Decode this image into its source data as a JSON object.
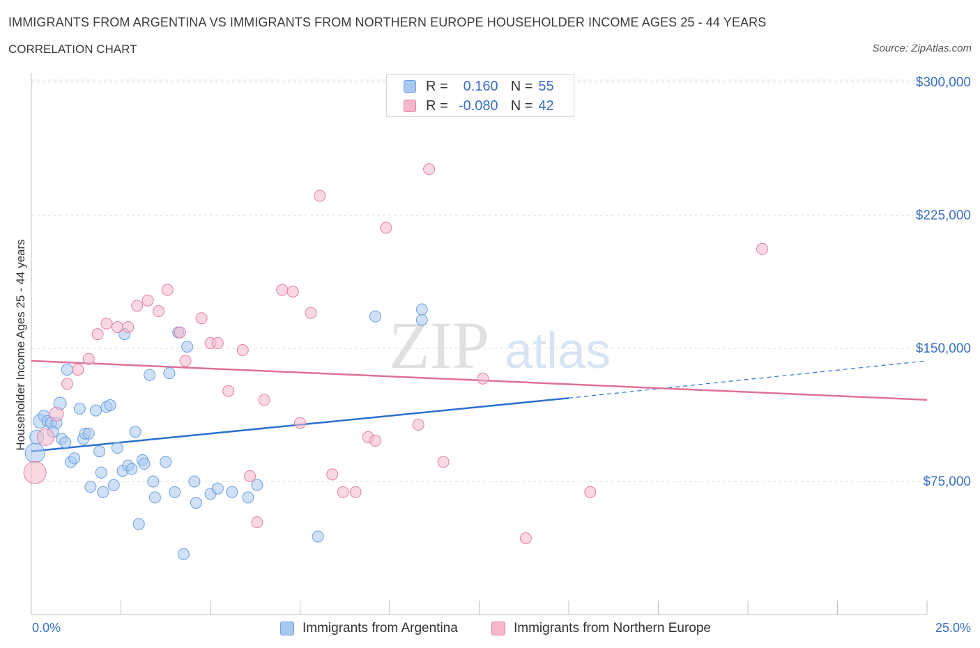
{
  "header": {
    "title": "IMMIGRANTS FROM ARGENTINA VS IMMIGRANTS FROM NORTHERN EUROPE HOUSEHOLDER INCOME AGES 25 - 44 YEARS",
    "subtitle": "CORRELATION CHART",
    "source": "Source: ZipAtlas.com"
  },
  "watermark": {
    "zip": "ZIP",
    "atlas": "atlas"
  },
  "stats_legend": {
    "rows": [
      {
        "r_label": "R =",
        "r_value": "0.160",
        "n_label": "N =",
        "n_value": "55",
        "color": "#a9c8f0"
      },
      {
        "r_label": "R =",
        "r_value": "-0.080",
        "n_label": "N =",
        "n_value": "42",
        "color": "#f5b8cb"
      }
    ]
  },
  "colors": {
    "blue_fill": "#a9c8f0",
    "blue_stroke": "#6a9fdf",
    "blue_line": "#2c6fcf",
    "pink_fill": "#f5b8cb",
    "pink_stroke": "#e27fa0",
    "pink_line": "#e0709a",
    "axis_text": "#3a6fc4",
    "grid": "#dcdcdc"
  },
  "chart_data": {
    "type": "scatter",
    "title": "IMMIGRANTS FROM ARGENTINA VS IMMIGRANTS FROM NORTHERN EUROPE HOUSEHOLDER INCOME AGES 25 - 44 YEARS",
    "xlabel": "",
    "ylabel": "Householder Income Ages 25 - 44 years",
    "x_unit": "%",
    "xlim": [
      0,
      25
    ],
    "ylim": [
      0,
      300000
    ],
    "y_ticks": [
      75000,
      150000,
      225000,
      300000
    ],
    "y_tick_labels": [
      "$75,000",
      "$150,000",
      "$225,000",
      "$300,000"
    ],
    "x_tick_labels": [
      "0.0%",
      "25.0%"
    ],
    "grid": true,
    "legend_position": "bottom",
    "series": [
      {
        "name": "Immigrants from Argentina",
        "color": "#a9c8f0",
        "trend": {
          "x": [
            0.0,
            15.0
          ],
          "y": [
            92000,
            122000
          ],
          "dashed_extension_to_x": 25.0,
          "dashed_y_at_end": 143000
        },
        "points": [
          {
            "x": 0.1,
            "y": 91000,
            "size": 14
          },
          {
            "x": 0.15,
            "y": 100000,
            "size": 10
          },
          {
            "x": 0.25,
            "y": 109000,
            "size": 10
          },
          {
            "x": 0.35,
            "y": 112000,
            "size": 8
          },
          {
            "x": 0.45,
            "y": 109000,
            "size": 8
          },
          {
            "x": 0.55,
            "y": 108000,
            "size": 8
          },
          {
            "x": 0.7,
            "y": 108000,
            "size": 8
          },
          {
            "x": 0.6,
            "y": 103000,
            "size": 8
          },
          {
            "x": 0.8,
            "y": 119000,
            "size": 9
          },
          {
            "x": 0.85,
            "y": 99000,
            "size": 8
          },
          {
            "x": 0.95,
            "y": 97000,
            "size": 8
          },
          {
            "x": 1.0,
            "y": 138000,
            "size": 8
          },
          {
            "x": 1.1,
            "y": 86000,
            "size": 8
          },
          {
            "x": 1.2,
            "y": 88000,
            "size": 8
          },
          {
            "x": 1.35,
            "y": 116000,
            "size": 8
          },
          {
            "x": 1.45,
            "y": 99000,
            "size": 8
          },
          {
            "x": 1.5,
            "y": 102000,
            "size": 8
          },
          {
            "x": 1.6,
            "y": 102000,
            "size": 8
          },
          {
            "x": 1.65,
            "y": 72000,
            "size": 8
          },
          {
            "x": 1.8,
            "y": 115000,
            "size": 8
          },
          {
            "x": 1.9,
            "y": 92000,
            "size": 8
          },
          {
            "x": 1.95,
            "y": 80000,
            "size": 8
          },
          {
            "x": 2.0,
            "y": 69000,
            "size": 8
          },
          {
            "x": 2.1,
            "y": 117000,
            "size": 8
          },
          {
            "x": 2.2,
            "y": 118000,
            "size": 8
          },
          {
            "x": 2.3,
            "y": 73000,
            "size": 8
          },
          {
            "x": 2.4,
            "y": 94000,
            "size": 8
          },
          {
            "x": 2.55,
            "y": 81000,
            "size": 8
          },
          {
            "x": 2.6,
            "y": 158000,
            "size": 8
          },
          {
            "x": 2.7,
            "y": 84000,
            "size": 8
          },
          {
            "x": 2.8,
            "y": 82000,
            "size": 8
          },
          {
            "x": 2.9,
            "y": 103000,
            "size": 8
          },
          {
            "x": 3.0,
            "y": 51000,
            "size": 8
          },
          {
            "x": 3.1,
            "y": 87000,
            "size": 8
          },
          {
            "x": 3.15,
            "y": 85000,
            "size": 8
          },
          {
            "x": 3.3,
            "y": 135000,
            "size": 8
          },
          {
            "x": 3.4,
            "y": 75000,
            "size": 8
          },
          {
            "x": 3.45,
            "y": 66000,
            "size": 8
          },
          {
            "x": 3.75,
            "y": 86000,
            "size": 8
          },
          {
            "x": 3.85,
            "y": 136000,
            "size": 8
          },
          {
            "x": 4.0,
            "y": 69000,
            "size": 8
          },
          {
            "x": 4.1,
            "y": 159000,
            "size": 8
          },
          {
            "x": 4.35,
            "y": 151000,
            "size": 8
          },
          {
            "x": 4.55,
            "y": 75000,
            "size": 8
          },
          {
            "x": 4.6,
            "y": 63000,
            "size": 8
          },
          {
            "x": 4.25,
            "y": 34000,
            "size": 8
          },
          {
            "x": 5.0,
            "y": 68000,
            "size": 8
          },
          {
            "x": 5.2,
            "y": 71000,
            "size": 8
          },
          {
            "x": 5.6,
            "y": 69000,
            "size": 8
          },
          {
            "x": 6.05,
            "y": 66000,
            "size": 8
          },
          {
            "x": 6.3,
            "y": 73000,
            "size": 8
          },
          {
            "x": 8.0,
            "y": 44000,
            "size": 8
          },
          {
            "x": 9.6,
            "y": 168000,
            "size": 8
          },
          {
            "x": 10.9,
            "y": 166000,
            "size": 8
          },
          {
            "x": 10.9,
            "y": 172000,
            "size": 8
          }
        ]
      },
      {
        "name": "Immigrants from Northern Europe",
        "color": "#f5b8cb",
        "trend": {
          "x": [
            0.0,
            25.0
          ],
          "y": [
            143000,
            121000
          ]
        },
        "points": [
          {
            "x": 0.1,
            "y": 80000,
            "size": 16
          },
          {
            "x": 0.4,
            "y": 100000,
            "size": 12
          },
          {
            "x": 0.7,
            "y": 113000,
            "size": 10
          },
          {
            "x": 1.0,
            "y": 130000,
            "size": 8
          },
          {
            "x": 1.3,
            "y": 138000,
            "size": 8
          },
          {
            "x": 1.6,
            "y": 144000,
            "size": 8
          },
          {
            "x": 1.85,
            "y": 158000,
            "size": 8
          },
          {
            "x": 2.1,
            "y": 164000,
            "size": 8
          },
          {
            "x": 2.4,
            "y": 162000,
            "size": 8
          },
          {
            "x": 2.7,
            "y": 162000,
            "size": 8
          },
          {
            "x": 2.95,
            "y": 174000,
            "size": 8
          },
          {
            "x": 3.25,
            "y": 177000,
            "size": 8
          },
          {
            "x": 3.55,
            "y": 171000,
            "size": 8
          },
          {
            "x": 3.8,
            "y": 183000,
            "size": 8
          },
          {
            "x": 4.15,
            "y": 159000,
            "size": 8
          },
          {
            "x": 4.3,
            "y": 143000,
            "size": 8
          },
          {
            "x": 4.75,
            "y": 167000,
            "size": 8
          },
          {
            "x": 5.0,
            "y": 153000,
            "size": 8
          },
          {
            "x": 5.2,
            "y": 153000,
            "size": 8
          },
          {
            "x": 5.5,
            "y": 126000,
            "size": 8
          },
          {
            "x": 5.9,
            "y": 149000,
            "size": 8
          },
          {
            "x": 6.1,
            "y": 78000,
            "size": 8
          },
          {
            "x": 6.3,
            "y": 52000,
            "size": 8
          },
          {
            "x": 6.5,
            "y": 121000,
            "size": 8
          },
          {
            "x": 7.0,
            "y": 183000,
            "size": 8
          },
          {
            "x": 7.3,
            "y": 182000,
            "size": 8
          },
          {
            "x": 7.5,
            "y": 108000,
            "size": 8
          },
          {
            "x": 7.8,
            "y": 170000,
            "size": 8
          },
          {
            "x": 8.05,
            "y": 236000,
            "size": 8
          },
          {
            "x": 8.4,
            "y": 79000,
            "size": 8
          },
          {
            "x": 8.7,
            "y": 69000,
            "size": 8
          },
          {
            "x": 9.05,
            "y": 69000,
            "size": 8
          },
          {
            "x": 9.4,
            "y": 100000,
            "size": 8
          },
          {
            "x": 9.6,
            "y": 98000,
            "size": 8
          },
          {
            "x": 9.9,
            "y": 218000,
            "size": 8
          },
          {
            "x": 10.8,
            "y": 107000,
            "size": 8
          },
          {
            "x": 11.1,
            "y": 251000,
            "size": 8
          },
          {
            "x": 11.5,
            "y": 86000,
            "size": 8
          },
          {
            "x": 12.6,
            "y": 133000,
            "size": 8
          },
          {
            "x": 13.8,
            "y": 43000,
            "size": 8
          },
          {
            "x": 15.6,
            "y": 69000,
            "size": 8
          },
          {
            "x": 20.4,
            "y": 206000,
            "size": 8
          }
        ]
      }
    ]
  },
  "bottom_legend": {
    "items": [
      {
        "label": "Immigrants from Argentina",
        "color": "#a9c8f0"
      },
      {
        "label": "Immigrants from Northern Europe",
        "color": "#f5b8cb"
      }
    ]
  }
}
